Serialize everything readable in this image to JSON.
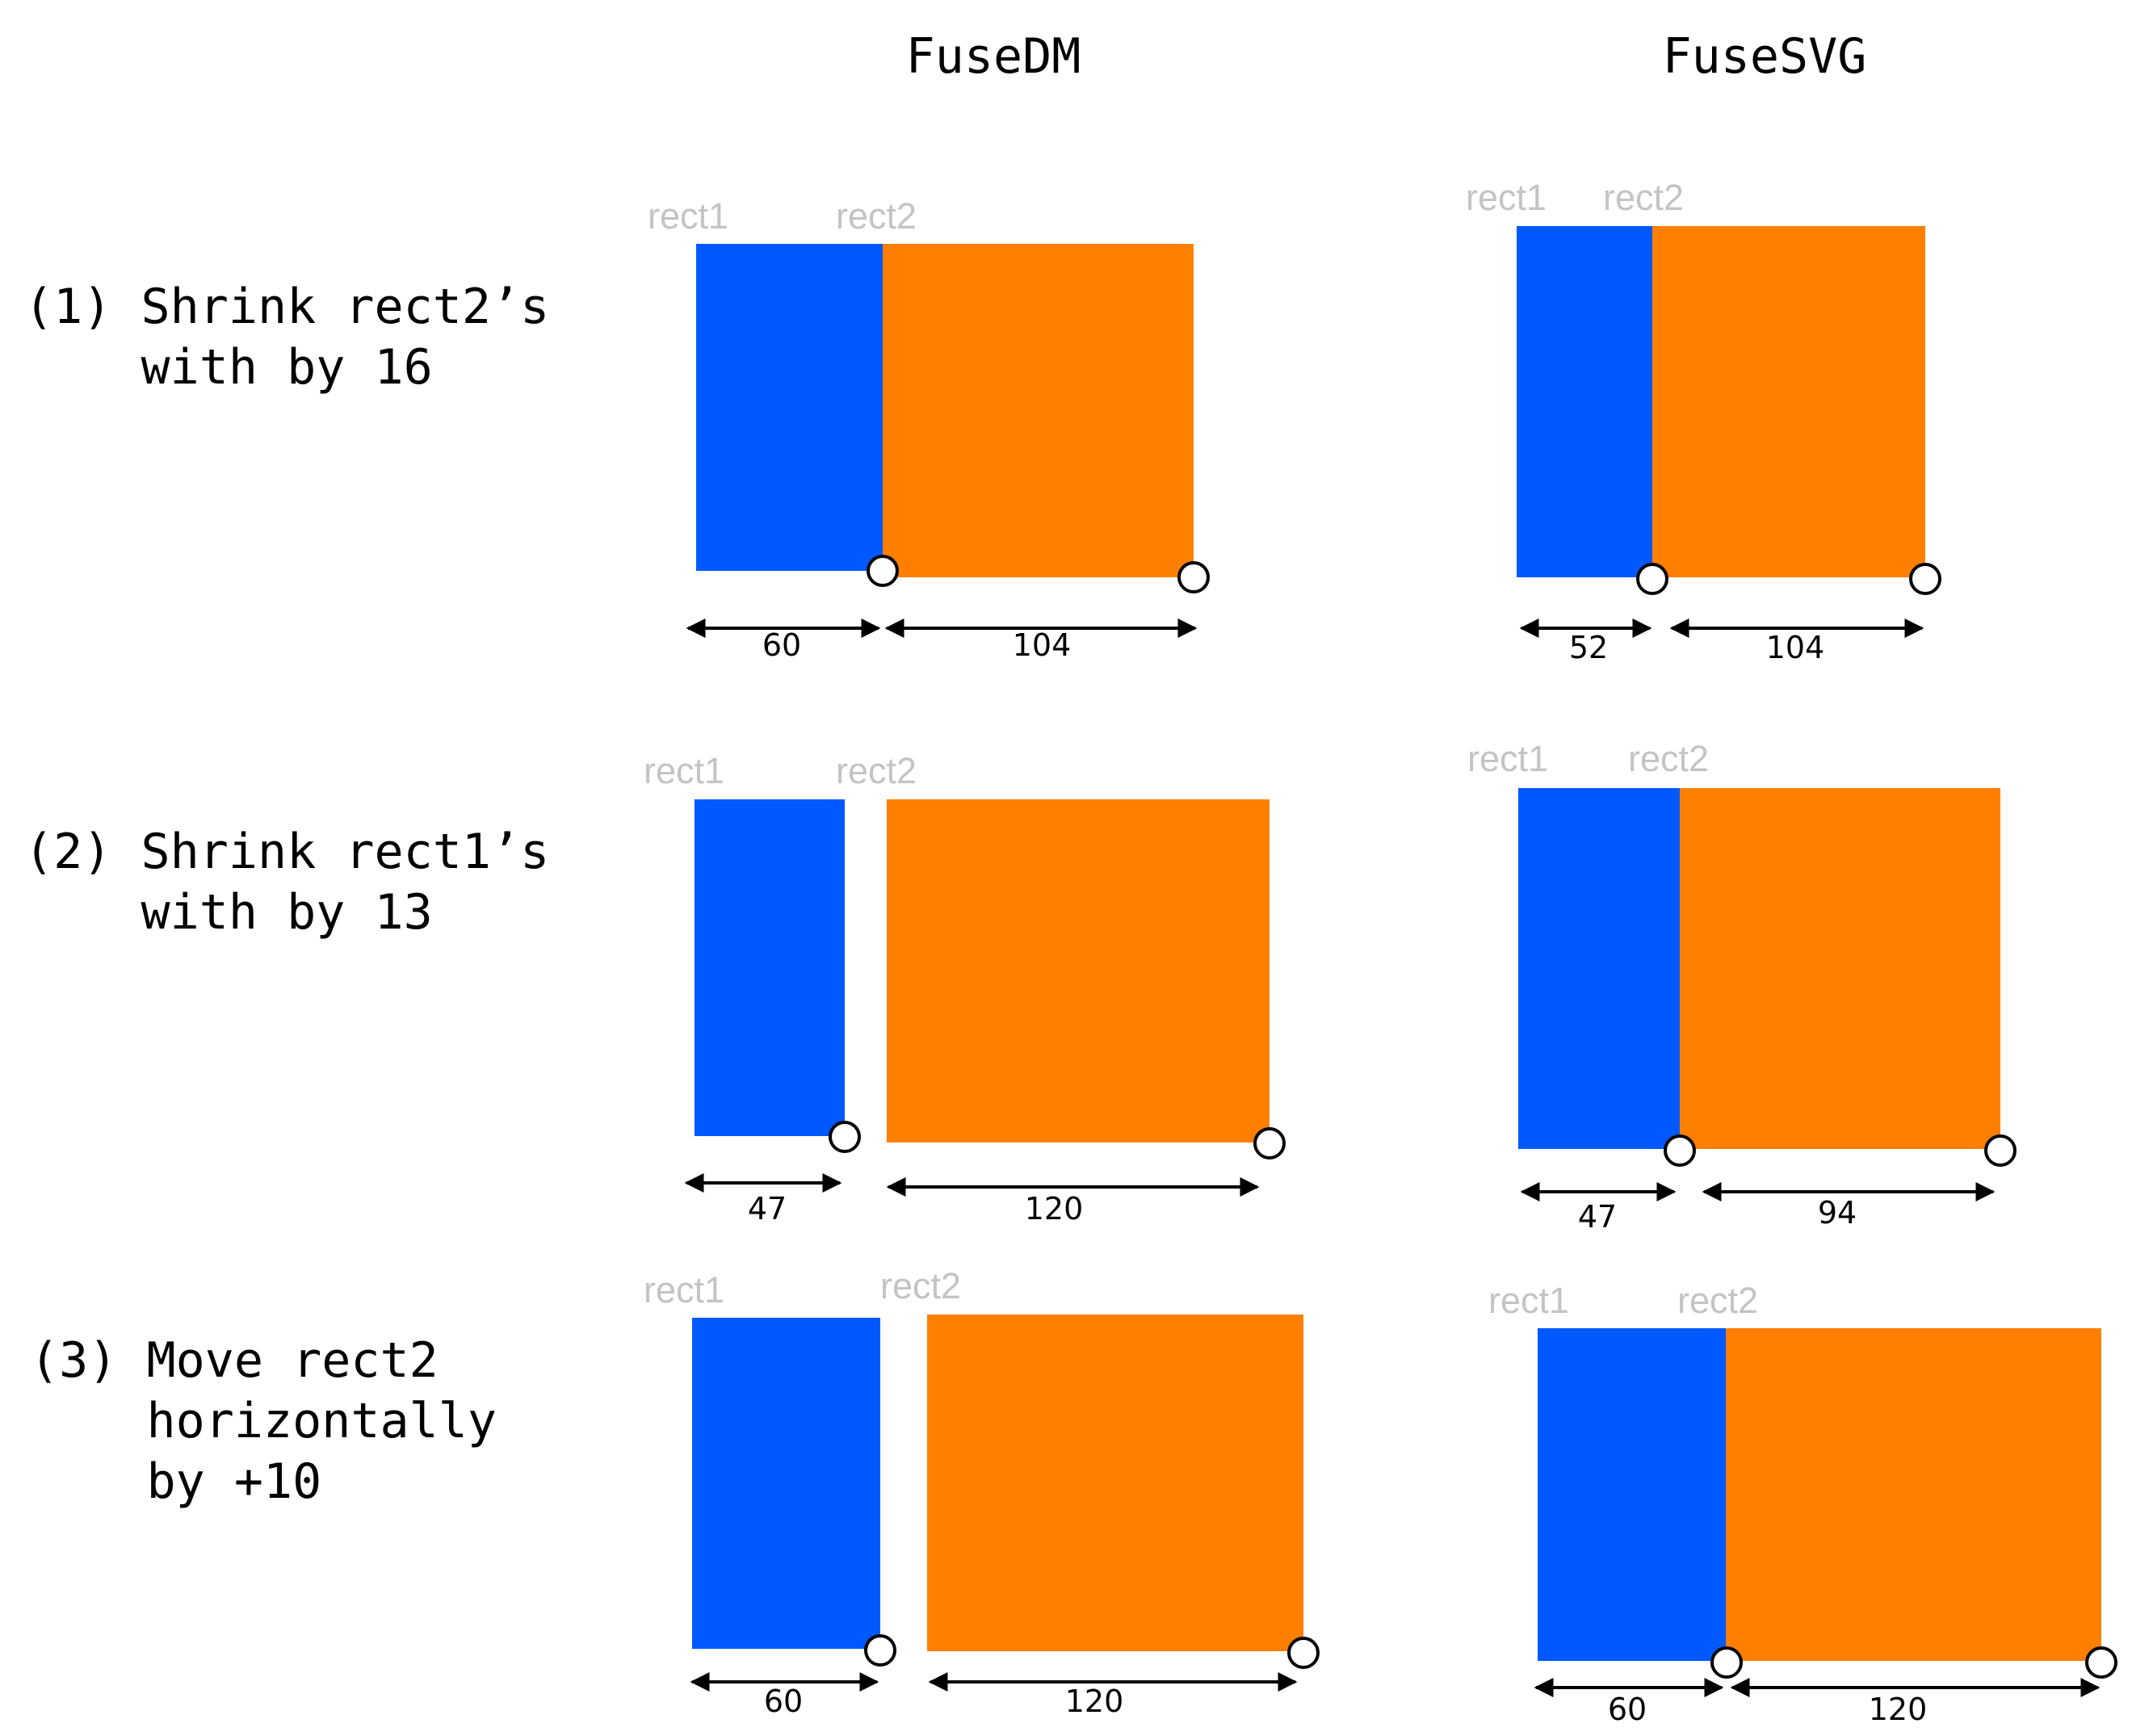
{
  "columns": [
    "FuseDM",
    "FuseSVG"
  ],
  "colors": {
    "rect1": "#0059ff",
    "rect2": "#ff7f00"
  },
  "rows": [
    {
      "label_lines": [
        "(1) Shrink rect2’s",
        "    with by 16"
      ],
      "panels": [
        {
          "rect1_label": "rect1",
          "rect2_label": "rect2",
          "dim1": "60",
          "dim2": "104"
        },
        {
          "rect1_label": "rect1",
          "rect2_label": "rect2",
          "dim1": "52",
          "dim2": "104"
        }
      ]
    },
    {
      "label_lines": [
        "(2) Shrink rect1’s",
        "    with by 13"
      ],
      "panels": [
        {
          "rect1_label": "rect1",
          "rect2_label": "rect2",
          "dim1": "47",
          "dim2": "120"
        },
        {
          "rect1_label": "rect1",
          "rect2_label": "rect2",
          "dim1": "47",
          "dim2": "94"
        }
      ]
    },
    {
      "label_lines": [
        "(3) Move rect2",
        "    horizontally",
        "    by +10"
      ],
      "panels": [
        {
          "rect1_label": "rect1",
          "rect2_label": "rect2",
          "dim1": "60",
          "dim2": "120"
        },
        {
          "rect1_label": "rect1",
          "rect2_label": "rect2",
          "dim1": "60",
          "dim2": "120"
        }
      ]
    }
  ]
}
